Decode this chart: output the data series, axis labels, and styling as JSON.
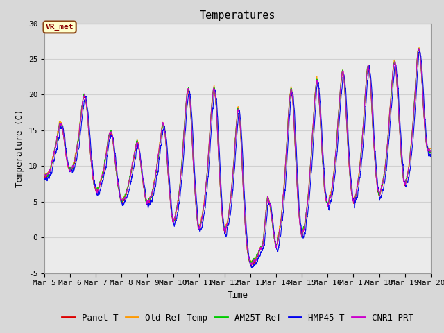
{
  "title": "Temperatures",
  "xlabel": "Time",
  "ylabel": "Temperature (C)",
  "ylim": [
    -5,
    30
  ],
  "xlim_days": [
    5,
    20
  ],
  "annotation_text": "VR_met",
  "bg_color": "#d8d8d8",
  "plot_bg_color": "#ebebeb",
  "series": [
    {
      "label": "Panel T",
      "color": "#dd0000"
    },
    {
      "label": "Old Ref Temp",
      "color": "#ff9900"
    },
    {
      "label": "AM25T Ref",
      "color": "#00cc00"
    },
    {
      "label": "HMP45 T",
      "color": "#0000ee"
    },
    {
      "label": "CNR1 PRT",
      "color": "#cc00cc"
    }
  ],
  "xtick_labels": [
    "Mar 5",
    "Mar 6",
    "Mar 7",
    "Mar 8",
    "Mar 9",
    "Mar 10",
    "Mar 11",
    "Mar 12",
    "Mar 13",
    "Mar 14",
    "Mar 15",
    "Mar 16",
    "Mar 17",
    "Mar 18",
    "Mar 19",
    "Mar 20"
  ],
  "xtick_positions": [
    5,
    6,
    7,
    8,
    9,
    10,
    11,
    12,
    13,
    14,
    15,
    16,
    17,
    18,
    19,
    20
  ],
  "ytick_positions": [
    -5,
    0,
    5,
    10,
    15,
    20,
    25,
    30
  ],
  "grid_color": "#d0d0d0",
  "title_fontsize": 11,
  "axis_label_fontsize": 9,
  "tick_fontsize": 8,
  "legend_fontsize": 9,
  "figsize": [
    6.4,
    4.8
  ],
  "dpi": 100
}
